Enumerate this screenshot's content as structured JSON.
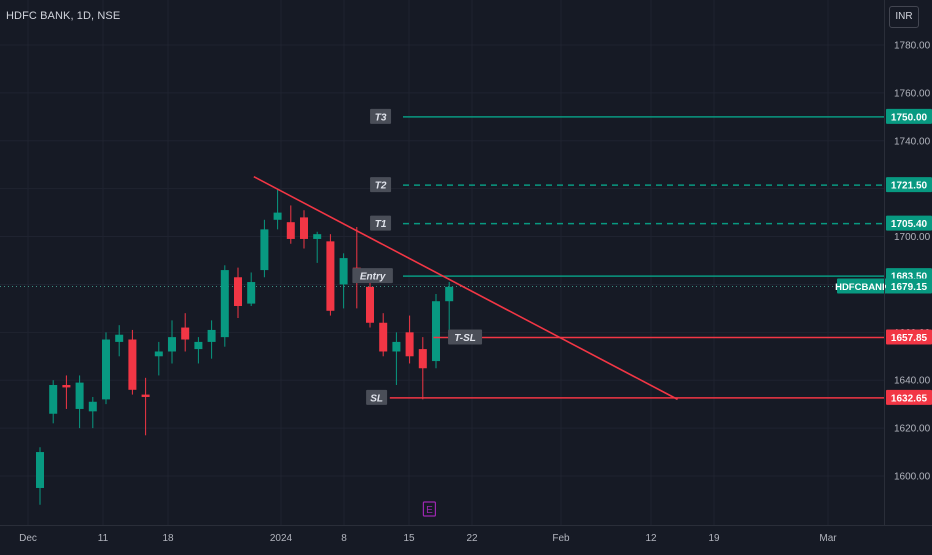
{
  "header": {
    "symbol_title": "HDFC BANK, 1D, NSE",
    "currency_button": "INR"
  },
  "colors": {
    "background": "#161a25",
    "grid": "#1f2330",
    "up": "#089981",
    "down": "#f23645",
    "axis_text": "#b2b5be",
    "target_line": "#089981",
    "stop_line": "#f23645",
    "trendline": "#f23645",
    "earnings_marker": "#9c27b0"
  },
  "chart_data": {
    "type": "candlestick",
    "symbol": "HDFC BANK",
    "timeframe": "1D",
    "exchange": "NSE",
    "ylim": [
      1590,
      1790
    ],
    "price_axis_ticks": [
      "1780.00",
      "1760.00",
      "1740.00",
      "1720.00",
      "1700.00",
      "1680.00",
      "1660.00",
      "1640.00",
      "1620.00",
      "1600.00"
    ],
    "time_axis_labels": [
      "Dec",
      "11",
      "18",
      "2024",
      "8",
      "15",
      "22",
      "Feb",
      "12",
      "19",
      "Mar"
    ],
    "candles": [
      {
        "o": 1595,
        "h": 1612,
        "l": 1588,
        "c": 1610
      },
      {
        "o": 1626,
        "h": 1640,
        "l": 1622,
        "c": 1638
      },
      {
        "o": 1638,
        "h": 1642,
        "l": 1628,
        "c": 1637
      },
      {
        "o": 1628,
        "h": 1642,
        "l": 1620,
        "c": 1639
      },
      {
        "o": 1627,
        "h": 1633,
        "l": 1620,
        "c": 1631
      },
      {
        "o": 1632,
        "h": 1660,
        "l": 1630,
        "c": 1657
      },
      {
        "o": 1656,
        "h": 1663,
        "l": 1650,
        "c": 1659
      },
      {
        "o": 1657,
        "h": 1661,
        "l": 1634,
        "c": 1636
      },
      {
        "o": 1634,
        "h": 1641,
        "l": 1617,
        "c": 1633
      },
      {
        "o": 1650,
        "h": 1656,
        "l": 1642,
        "c": 1652
      },
      {
        "o": 1652,
        "h": 1665,
        "l": 1647,
        "c": 1658
      },
      {
        "o": 1662,
        "h": 1668,
        "l": 1652,
        "c": 1657
      },
      {
        "o": 1653,
        "h": 1658,
        "l": 1647,
        "c": 1656
      },
      {
        "o": 1656,
        "h": 1665,
        "l": 1649,
        "c": 1661
      },
      {
        "o": 1658,
        "h": 1688,
        "l": 1654,
        "c": 1686
      },
      {
        "o": 1683,
        "h": 1687,
        "l": 1666,
        "c": 1671
      },
      {
        "o": 1672,
        "h": 1685,
        "l": 1671,
        "c": 1681
      },
      {
        "o": 1686,
        "h": 1707,
        "l": 1683,
        "c": 1703
      },
      {
        "o": 1707,
        "h": 1720,
        "l": 1703,
        "c": 1710
      },
      {
        "o": 1706,
        "h": 1713,
        "l": 1697,
        "c": 1699
      },
      {
        "o": 1708,
        "h": 1711,
        "l": 1695,
        "c": 1699
      },
      {
        "o": 1699,
        "h": 1702,
        "l": 1689,
        "c": 1701
      },
      {
        "o": 1698,
        "h": 1701,
        "l": 1667,
        "c": 1669
      },
      {
        "o": 1680,
        "h": 1693,
        "l": 1670,
        "c": 1691
      },
      {
        "o": 1687,
        "h": 1704,
        "l": 1670,
        "c": 1681
      },
      {
        "o": 1679,
        "h": 1681,
        "l": 1662,
        "c": 1664
      },
      {
        "o": 1664,
        "h": 1668,
        "l": 1650,
        "c": 1652
      },
      {
        "o": 1652,
        "h": 1660,
        "l": 1638,
        "c": 1656
      },
      {
        "o": 1660,
        "h": 1667,
        "l": 1647,
        "c": 1650
      },
      {
        "o": 1653,
        "h": 1658,
        "l": 1632,
        "c": 1645
      },
      {
        "o": 1648,
        "h": 1676,
        "l": 1645,
        "c": 1673
      },
      {
        "o": 1673,
        "h": 1681,
        "l": 1659,
        "c": 1679
      }
    ],
    "trendline": {
      "from": {
        "i": 16.2,
        "p": 1725
      },
      "to": {
        "i": 48.3,
        "p": 1632
      }
    },
    "levels": [
      {
        "label": "T3",
        "price": 1750.0,
        "price_tag": "1750.00",
        "style": "solid",
        "color": "#089981",
        "start_i": 27.5,
        "label_i": 25.8
      },
      {
        "label": "T2",
        "price": 1721.5,
        "price_tag": "1721.50",
        "style": "dashed",
        "color": "#089981",
        "start_i": 27.5,
        "label_i": 25.8
      },
      {
        "label": "T1",
        "price": 1705.4,
        "price_tag": "1705.40",
        "style": "dashed",
        "color": "#089981",
        "start_i": 27.5,
        "label_i": 25.8
      },
      {
        "label": "Entry",
        "price": 1683.5,
        "price_tag": "1683.50",
        "style": "solid",
        "color": "#089981",
        "start_i": 27.5,
        "label_i": 25.2
      },
      {
        "label": "T-SL",
        "price": 1657.85,
        "price_tag": "1657.85",
        "style": "solid",
        "color": "#f23645",
        "start_i": 29.8,
        "label_i": 32.2
      },
      {
        "label": "SL",
        "price": 1632.65,
        "price_tag": "1632.65",
        "style": "solid",
        "color": "#f23645",
        "start_i": 26.5,
        "label_i": 25.5
      }
    ],
    "last_price": {
      "symbol": "HDFCBANK",
      "value": "1679.15",
      "price": 1679.15
    },
    "earnings_marker": {
      "label": "E",
      "i": 29.5
    }
  }
}
